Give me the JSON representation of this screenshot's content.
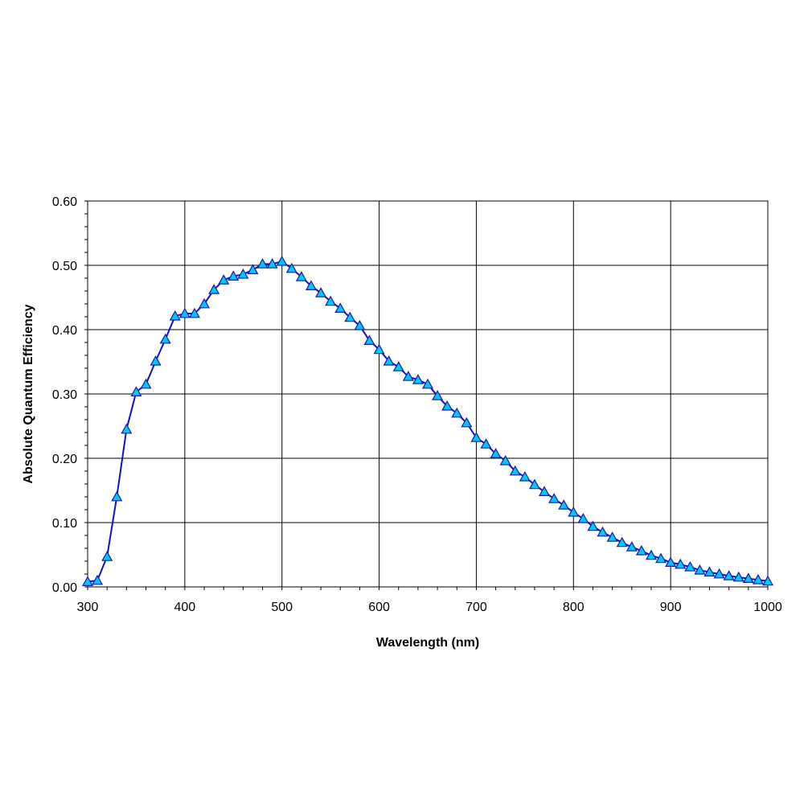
{
  "chart_data": {
    "type": "line",
    "title": "",
    "xlabel": "Wavelength (nm)",
    "ylabel": "Absolute Quantum Efficiency",
    "xlim": [
      300,
      1000
    ],
    "ylim": [
      0,
      0.6
    ],
    "x_ticks": [
      300,
      400,
      500,
      600,
      700,
      800,
      900,
      1000
    ],
    "y_ticks": [
      0.0,
      0.1,
      0.2,
      0.3,
      0.4,
      0.5,
      0.6
    ],
    "x_tick_labels": [
      "300",
      "400",
      "500",
      "600",
      "700",
      "800",
      "900",
      "1000"
    ],
    "y_tick_labels": [
      "0.00",
      "0.10",
      "0.20",
      "0.30",
      "0.40",
      "0.50",
      "0.60"
    ],
    "grid": true,
    "legend": "none",
    "line_color": "#1010c8",
    "marker": "triangle",
    "marker_fill": "#00c8ff",
    "marker_edge": "#1a1aa0",
    "series": [
      {
        "x": [
          300,
          310,
          320,
          330,
          340,
          350,
          360,
          370,
          380,
          390,
          400,
          410,
          420,
          430,
          440,
          450,
          460,
          470,
          480,
          490,
          500,
          510,
          520,
          530,
          540,
          550,
          560,
          570,
          580,
          590,
          600,
          610,
          620,
          630,
          640,
          650,
          660,
          670,
          680,
          690,
          700,
          710,
          720,
          730,
          740,
          750,
          760,
          770,
          780,
          790,
          800,
          810,
          820,
          830,
          840,
          850,
          860,
          870,
          880,
          890,
          900,
          910,
          920,
          930,
          940,
          950,
          960,
          970,
          980,
          990,
          1000
        ],
        "y": [
          0.008,
          0.01,
          0.047,
          0.14,
          0.245,
          0.303,
          0.315,
          0.351,
          0.385,
          0.421,
          0.425,
          0.425,
          0.44,
          0.462,
          0.477,
          0.483,
          0.486,
          0.493,
          0.502,
          0.502,
          0.506,
          0.495,
          0.482,
          0.468,
          0.457,
          0.444,
          0.433,
          0.419,
          0.406,
          0.383,
          0.369,
          0.351,
          0.342,
          0.327,
          0.322,
          0.315,
          0.297,
          0.281,
          0.27,
          0.255,
          0.232,
          0.222,
          0.207,
          0.196,
          0.18,
          0.171,
          0.159,
          0.148,
          0.137,
          0.127,
          0.116,
          0.106,
          0.094,
          0.085,
          0.077,
          0.069,
          0.062,
          0.056,
          0.049,
          0.044,
          0.038,
          0.035,
          0.031,
          0.026,
          0.023,
          0.02,
          0.017,
          0.015,
          0.013,
          0.011,
          0.009
        ]
      }
    ]
  }
}
